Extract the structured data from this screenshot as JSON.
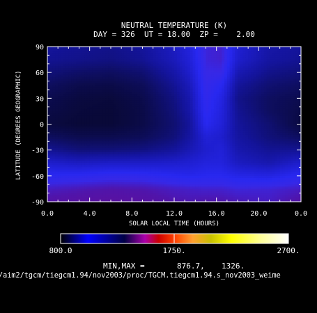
{
  "chart_data": {
    "type": "heatmap",
    "title": "NEUTRAL TEMPERATURE (K)",
    "subtitle": "DAY = 326  UT = 18.00  ZP =    2.00",
    "xlabel": "SOLAR LOCAL TIME (HOURS)",
    "ylabel": "LATITUDE (DEGREES GEOGRAPHIC)",
    "xlim": [
      0,
      24
    ],
    "ylim": [
      -90,
      90
    ],
    "x_tick_labels": [
      "0.0",
      "4.0",
      "8.0",
      "12.0",
      "16.0",
      "20.0",
      "0.0"
    ],
    "y_tick_labels": [
      "-90",
      "-60",
      "-30",
      "0",
      "30",
      "60",
      "90"
    ],
    "colorbar": {
      "min_label": "800.0",
      "mid_label": "1750.",
      "max_label": "2700.",
      "range": [
        800,
        2700
      ]
    },
    "minmax_label": "MIN,MAX =",
    "min_value": "876.7,",
    "max_value": "1326.",
    "path_label": "/aim2/tgcm/tiegcm1.94/nov2003/proc/TGCM.tiegcm1.94.s_nov2003_weime",
    "grid_x_hours": [
      0,
      3,
      6,
      9,
      12,
      13.5,
      15,
      16.5,
      18,
      21,
      24
    ],
    "grid_lat": [
      -90,
      -75,
      -60,
      -45,
      -30,
      -15,
      0,
      15,
      30,
      45,
      60,
      75,
      90
    ],
    "values": [
      [
        1260,
        1270,
        1275,
        1270,
        1250,
        1245,
        1250,
        1250,
        1240,
        1230,
        1260
      ],
      [
        1230,
        1240,
        1250,
        1245,
        1230,
        1225,
        1220,
        1220,
        1210,
        1215,
        1230
      ],
      [
        1160,
        1165,
        1180,
        1175,
        1150,
        1140,
        1150,
        1150,
        1130,
        1120,
        1160
      ],
      [
        1080,
        1060,
        1070,
        1070,
        1080,
        1090,
        1110,
        1110,
        1060,
        1030,
        1080
      ],
      [
        990,
        960,
        960,
        970,
        1000,
        1040,
        1080,
        1100,
        1030,
        990,
        990
      ],
      [
        930,
        910,
        910,
        920,
        960,
        1010,
        1100,
        1080,
        1010,
        960,
        930
      ],
      [
        890,
        880,
        880,
        900,
        950,
        1000,
        1150,
        1100,
        1000,
        950,
        890
      ],
      [
        900,
        885,
        880,
        900,
        960,
        1020,
        1170,
        1110,
        990,
        930,
        900
      ],
      [
        910,
        890,
        885,
        905,
        970,
        1030,
        1180,
        1120,
        980,
        930,
        910
      ],
      [
        930,
        905,
        900,
        920,
        990,
        1050,
        1190,
        1150,
        1000,
        950,
        930
      ],
      [
        960,
        940,
        930,
        950,
        1020,
        1080,
        1200,
        1200,
        1040,
        980,
        960
      ],
      [
        990,
        980,
        970,
        990,
        1050,
        1100,
        1210,
        1220,
        1080,
        1010,
        990
      ],
      [
        1000,
        990,
        980,
        1000,
        1060,
        1110,
        1210,
        1220,
        1090,
        1020,
        1000
      ]
    ]
  }
}
